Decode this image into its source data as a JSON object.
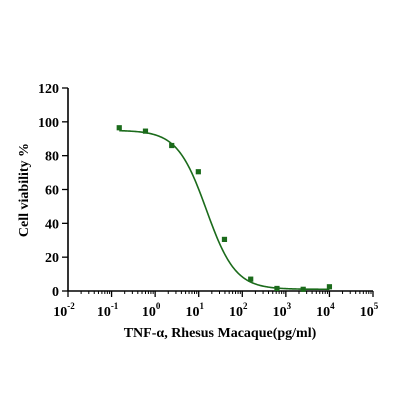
{
  "chart_data": {
    "type": "scatter",
    "title": "",
    "xlabel": "TNF-α, Rhesus Macaque(pg/ml)",
    "ylabel": "Cell viability %",
    "x_scale": "log",
    "xlim": [
      0.01,
      100000
    ],
    "ylim": [
      0,
      120
    ],
    "x_ticks": [
      {
        "base": "10",
        "exp": "-2"
      },
      {
        "base": "10",
        "exp": "-1"
      },
      {
        "base": "10",
        "exp": "0"
      },
      {
        "base": "10",
        "exp": "1"
      },
      {
        "base": "10",
        "exp": "2"
      },
      {
        "base": "10",
        "exp": "3"
      },
      {
        "base": "10",
        "exp": "4"
      },
      {
        "base": "10",
        "exp": "5"
      }
    ],
    "y_ticks": [
      "0",
      "20",
      "40",
      "60",
      "80",
      "100",
      "120"
    ],
    "series": [
      {
        "points": [
          {
            "x": 0.15,
            "y": 96.5
          },
          {
            "x": 0.6,
            "y": 94.5
          },
          {
            "x": 2.4,
            "y": 86
          },
          {
            "x": 9.8,
            "y": 70.5
          },
          {
            "x": 39,
            "y": 30.5
          },
          {
            "x": 156,
            "y": 7
          },
          {
            "x": 625,
            "y": 1.5
          },
          {
            "x": 2500,
            "y": 1
          },
          {
            "x": 10000,
            "y": 2.5
          }
        ],
        "fit": {
          "model": "4PL",
          "top": 95,
          "bottom": 1,
          "ic50": 15,
          "hill": 1.3
        }
      }
    ],
    "grid": false,
    "colors": {
      "marker": "#1b6b1b",
      "curve": "#1b6b1b",
      "axis": "#000000"
    }
  }
}
